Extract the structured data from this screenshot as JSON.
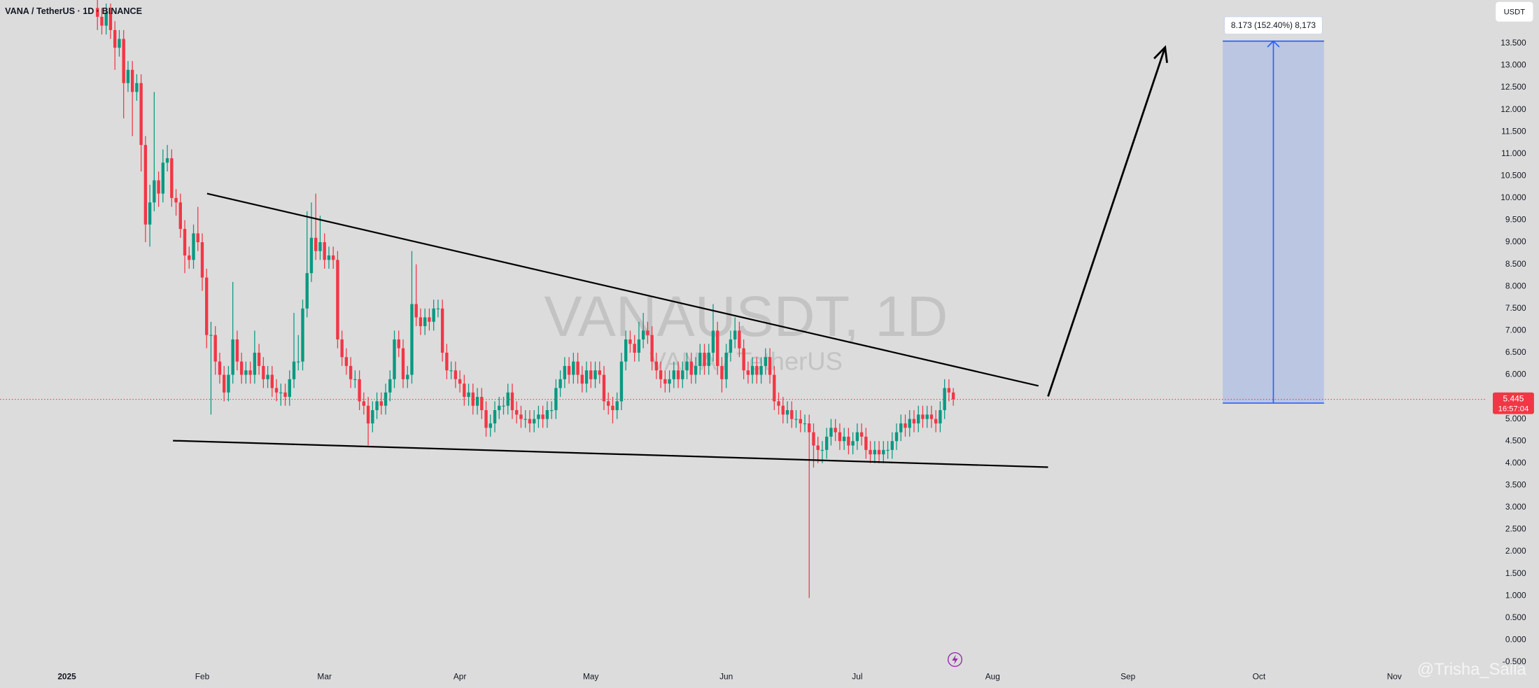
{
  "chart_data": {
    "type": "candlestick",
    "title": "VANA / TetherUS · 1D · BINANCE",
    "watermark": {
      "symbol": "VANAUSDT, 1D",
      "name": "VANA / TetherUS"
    },
    "currency": "USDT",
    "countdown": "16:57:04",
    "up_color": "#089981",
    "down_color": "#f23645",
    "grid": false,
    "xlim": [
      -15.3,
      325.2
    ],
    "xticks": [
      {
        "value": 0,
        "label": "2025"
      },
      {
        "value": 31,
        "label": "Feb"
      },
      {
        "value": 59,
        "label": "Mar"
      },
      {
        "value": 90,
        "label": "Apr"
      },
      {
        "value": 120,
        "label": "May"
      },
      {
        "value": 151,
        "label": "Jun"
      },
      {
        "value": 181,
        "label": "Jul"
      },
      {
        "value": 212,
        "label": "Aug"
      },
      {
        "value": 243,
        "label": "Sep"
      },
      {
        "value": 273,
        "label": "Oct"
      },
      {
        "value": 304,
        "label": "Nov"
      }
    ],
    "ylim": [
      -0.62,
      14.48
    ],
    "yticks": [
      {
        "value": -0.5,
        "label": "-0.500"
      },
      {
        "value": 0,
        "label": "0.000"
      },
      {
        "value": 0.5,
        "label": "0.500"
      },
      {
        "value": 1,
        "label": "1.000"
      },
      {
        "value": 1.5,
        "label": "1.500"
      },
      {
        "value": 2,
        "label": "2.000"
      },
      {
        "value": 2.5,
        "label": "2.500"
      },
      {
        "value": 3,
        "label": "3.000"
      },
      {
        "value": 3.5,
        "label": "3.500"
      },
      {
        "value": 4,
        "label": "4.000"
      },
      {
        "value": 4.5,
        "label": "4.500"
      },
      {
        "value": 5,
        "label": "5.000"
      },
      {
        "value": 5.5,
        "label": "5.500"
      },
      {
        "value": 6,
        "label": "6.000"
      },
      {
        "value": 6.5,
        "label": "6.500"
      },
      {
        "value": 7,
        "label": "7.000"
      },
      {
        "value": 7.5,
        "label": "7.500"
      },
      {
        "value": 8,
        "label": "8.000"
      },
      {
        "value": 8.5,
        "label": "8.500"
      },
      {
        "value": 9,
        "label": "9.000"
      },
      {
        "value": 9.5,
        "label": "9.500"
      },
      {
        "value": 10,
        "label": "10.000"
      },
      {
        "value": 10.5,
        "label": "10.500"
      },
      {
        "value": 11,
        "label": "11.000"
      },
      {
        "value": 11.5,
        "label": "11.500"
      },
      {
        "value": 12,
        "label": "12.000"
      },
      {
        "value": 12.5,
        "label": "12.500"
      },
      {
        "value": 13,
        "label": "13.000"
      },
      {
        "value": 13.5,
        "label": "13.500"
      }
    ],
    "x": [
      7,
      8,
      9,
      10,
      11,
      12,
      13,
      14,
      15,
      16,
      17,
      18,
      19,
      20,
      21,
      22,
      23,
      24,
      25,
      26,
      27,
      28,
      29,
      30,
      31,
      32,
      33,
      34,
      35,
      36,
      37,
      38,
      39,
      40,
      41,
      42,
      43,
      44,
      45,
      46,
      47,
      48,
      49,
      50,
      51,
      52,
      53,
      54,
      55,
      56,
      57,
      58,
      59,
      60,
      61,
      62,
      63,
      64,
      65,
      66,
      67,
      68,
      69,
      70,
      71,
      72,
      73,
      74,
      75,
      76,
      77,
      78,
      79,
      80,
      81,
      82,
      83,
      84,
      85,
      86,
      87,
      88,
      89,
      90,
      91,
      92,
      93,
      94,
      95,
      96,
      97,
      98,
      99,
      100,
      101,
      102,
      103,
      104,
      105,
      106,
      107,
      108,
      109,
      110,
      111,
      112,
      113,
      114,
      115,
      116,
      117,
      118,
      119,
      120,
      121,
      122,
      123,
      124,
      125,
      126,
      127,
      128,
      129,
      130,
      131,
      132,
      133,
      134,
      135,
      136,
      137,
      138,
      139,
      140,
      141,
      142,
      143,
      144,
      145,
      146,
      147,
      148,
      149,
      150,
      151,
      152,
      153,
      154,
      155,
      156,
      157,
      158,
      159,
      160,
      161,
      162,
      163,
      164,
      165,
      166,
      167,
      168,
      169,
      170,
      171,
      172,
      173,
      174,
      175,
      176,
      177,
      178,
      179,
      180,
      181,
      182,
      183,
      184,
      185,
      186,
      187,
      188,
      189,
      190,
      191,
      192,
      193,
      194,
      195,
      196,
      197,
      198,
      199,
      200,
      201,
      202,
      203
    ],
    "candles": [
      [
        14.3,
        14.6,
        13.8,
        14.1
      ],
      [
        14.1,
        14.3,
        13.7,
        13.9
      ],
      [
        13.9,
        14.4,
        13.7,
        14.2
      ],
      [
        14.2,
        14.4,
        13.6,
        13.8
      ],
      [
        13.8,
        14.0,
        12.9,
        13.4
      ],
      [
        13.4,
        13.8,
        13.2,
        13.6
      ],
      [
        13.6,
        13.8,
        11.8,
        12.6
      ],
      [
        12.6,
        13.1,
        12.4,
        12.9
      ],
      [
        12.9,
        13.1,
        11.4,
        12.4
      ],
      [
        12.4,
        12.8,
        12.2,
        12.6
      ],
      [
        12.6,
        12.8,
        10.6,
        11.2
      ],
      [
        11.2,
        11.4,
        9.0,
        9.4
      ],
      [
        9.4,
        10.3,
        8.9,
        9.9
      ],
      [
        9.9,
        12.4,
        9.7,
        10.4
      ],
      [
        10.4,
        10.6,
        9.8,
        10.1
      ],
      [
        10.1,
        11.1,
        9.9,
        10.8
      ],
      [
        10.8,
        11.2,
        10.6,
        10.9
      ],
      [
        10.9,
        11.1,
        9.8,
        10.0
      ],
      [
        10.0,
        10.2,
        9.6,
        9.9
      ],
      [
        9.9,
        10.1,
        9.1,
        9.3
      ],
      [
        9.3,
        9.5,
        8.3,
        8.7
      ],
      [
        8.7,
        8.9,
        8.4,
        8.6
      ],
      [
        8.6,
        9.4,
        8.4,
        9.2
      ],
      [
        9.2,
        9.8,
        8.8,
        9.0
      ],
      [
        9.0,
        9.2,
        7.9,
        8.2
      ],
      [
        8.2,
        8.4,
        6.6,
        6.9
      ],
      [
        6.9,
        7.2,
        5.1,
        6.9
      ],
      [
        6.9,
        7.1,
        6.0,
        6.3
      ],
      [
        6.3,
        6.5,
        5.8,
        6.0
      ],
      [
        6.0,
        6.2,
        5.4,
        5.6
      ],
      [
        5.6,
        6.2,
        5.4,
        6.0
      ],
      [
        6.0,
        8.1,
        5.8,
        6.8
      ],
      [
        6.8,
        7.0,
        6.1,
        6.3
      ],
      [
        6.3,
        6.5,
        5.8,
        6.0
      ],
      [
        6.0,
        6.3,
        5.8,
        6.1
      ],
      [
        6.1,
        6.3,
        5.8,
        6.0
      ],
      [
        6.0,
        7.0,
        5.8,
        6.5
      ],
      [
        6.5,
        6.7,
        6.0,
        6.2
      ],
      [
        6.2,
        6.4,
        5.7,
        5.9
      ],
      [
        5.9,
        6.2,
        5.7,
        6.0
      ],
      [
        6.0,
        6.2,
        5.5,
        5.7
      ],
      [
        5.7,
        5.9,
        5.4,
        5.6
      ],
      [
        5.6,
        5.8,
        5.3,
        5.6
      ],
      [
        5.6,
        5.8,
        5.3,
        5.5
      ],
      [
        5.5,
        6.1,
        5.3,
        5.9
      ],
      [
        5.9,
        7.4,
        5.7,
        6.3
      ],
      [
        6.3,
        6.9,
        6.1,
        6.3
      ],
      [
        6.3,
        7.7,
        6.1,
        7.5
      ],
      [
        7.5,
        9.7,
        7.3,
        8.3
      ],
      [
        8.3,
        9.9,
        8.1,
        9.1
      ],
      [
        9.1,
        10.1,
        8.6,
        8.8
      ],
      [
        8.8,
        9.6,
        8.6,
        9.0
      ],
      [
        9.0,
        9.2,
        8.4,
        8.6
      ],
      [
        8.6,
        8.9,
        8.4,
        8.7
      ],
      [
        8.7,
        8.9,
        8.4,
        8.6
      ],
      [
        8.6,
        8.8,
        6.6,
        6.8
      ],
      [
        6.8,
        7.0,
        6.2,
        6.4
      ],
      [
        6.4,
        6.6,
        6.0,
        6.2
      ],
      [
        6.2,
        6.4,
        5.7,
        5.9
      ],
      [
        5.9,
        6.1,
        5.7,
        5.9
      ],
      [
        5.9,
        6.1,
        5.2,
        5.4
      ],
      [
        5.4,
        5.6,
        5.1,
        5.3
      ],
      [
        5.3,
        5.5,
        4.4,
        4.9
      ],
      [
        4.9,
        5.4,
        4.7,
        5.2
      ],
      [
        5.2,
        5.6,
        5.0,
        5.4
      ],
      [
        5.4,
        5.6,
        5.1,
        5.3
      ],
      [
        5.3,
        5.8,
        5.1,
        5.6
      ],
      [
        5.6,
        6.1,
        5.4,
        5.9
      ],
      [
        5.9,
        7.0,
        5.7,
        6.8
      ],
      [
        6.8,
        7.0,
        6.4,
        6.6
      ],
      [
        6.6,
        6.8,
        5.7,
        5.9
      ],
      [
        5.9,
        6.2,
        5.7,
        6.0
      ],
      [
        6.0,
        8.8,
        5.8,
        7.6
      ],
      [
        7.6,
        8.5,
        7.1,
        7.3
      ],
      [
        7.3,
        7.5,
        6.9,
        7.1
      ],
      [
        7.1,
        7.5,
        6.9,
        7.3
      ],
      [
        7.3,
        7.5,
        7.0,
        7.2
      ],
      [
        7.2,
        7.7,
        7.0,
        7.5
      ],
      [
        7.5,
        7.7,
        7.3,
        7.5
      ],
      [
        7.5,
        7.7,
        6.3,
        6.5
      ],
      [
        6.5,
        6.7,
        5.9,
        6.1
      ],
      [
        6.1,
        6.3,
        5.9,
        6.1
      ],
      [
        6.1,
        6.3,
        5.7,
        5.9
      ],
      [
        5.9,
        6.1,
        5.6,
        5.8
      ],
      [
        5.8,
        6.0,
        5.3,
        5.5
      ],
      [
        5.5,
        5.8,
        5.3,
        5.6
      ],
      [
        5.6,
        5.8,
        5.1,
        5.3
      ],
      [
        5.3,
        5.7,
        5.1,
        5.5
      ],
      [
        5.5,
        5.7,
        5.0,
        5.2
      ],
      [
        5.2,
        5.4,
        4.6,
        4.8
      ],
      [
        4.8,
        5.1,
        4.6,
        4.9
      ],
      [
        4.9,
        5.4,
        4.7,
        5.2
      ],
      [
        5.2,
        5.5,
        5.0,
        5.3
      ],
      [
        5.3,
        5.5,
        5.1,
        5.3
      ],
      [
        5.3,
        5.8,
        5.1,
        5.6
      ],
      [
        5.6,
        5.8,
        5.0,
        5.2
      ],
      [
        5.2,
        5.4,
        4.9,
        5.1
      ],
      [
        5.1,
        5.3,
        4.8,
        5.0
      ],
      [
        5.0,
        5.2,
        4.8,
        5.0
      ],
      [
        5.0,
        5.2,
        4.7,
        4.9
      ],
      [
        4.9,
        5.2,
        4.7,
        5.0
      ],
      [
        5.0,
        5.3,
        4.8,
        5.1
      ],
      [
        5.1,
        5.3,
        4.8,
        5.0
      ],
      [
        5.0,
        5.4,
        4.8,
        5.2
      ],
      [
        5.2,
        5.4,
        5.0,
        5.2
      ],
      [
        5.2,
        5.9,
        5.0,
        5.7
      ],
      [
        5.7,
        6.1,
        5.5,
        5.9
      ],
      [
        5.9,
        6.4,
        5.7,
        6.2
      ],
      [
        6.2,
        6.4,
        5.8,
        6.0
      ],
      [
        6.0,
        6.5,
        5.8,
        6.3
      ],
      [
        6.3,
        6.5,
        5.8,
        6.0
      ],
      [
        6.0,
        6.2,
        5.6,
        5.8
      ],
      [
        5.8,
        6.3,
        5.6,
        6.1
      ],
      [
        6.1,
        6.3,
        5.7,
        5.9
      ],
      [
        5.9,
        6.3,
        5.7,
        6.1
      ],
      [
        6.1,
        6.3,
        5.8,
        6.0
      ],
      [
        6.0,
        6.2,
        5.2,
        5.4
      ],
      [
        5.4,
        5.6,
        5.1,
        5.3
      ],
      [
        5.3,
        5.5,
        4.9,
        5.2
      ],
      [
        5.2,
        5.6,
        5.0,
        5.4
      ],
      [
        5.4,
        6.5,
        5.2,
        6.3
      ],
      [
        6.3,
        7.0,
        6.1,
        6.8
      ],
      [
        6.8,
        7.0,
        6.5,
        6.7
      ],
      [
        6.7,
        6.9,
        6.3,
        6.5
      ],
      [
        6.5,
        7.2,
        6.3,
        6.8
      ],
      [
        6.8,
        7.4,
        6.6,
        7.0
      ],
      [
        7.0,
        7.2,
        6.7,
        6.9
      ],
      [
        6.9,
        7.1,
        6.1,
        6.3
      ],
      [
        6.3,
        6.5,
        5.9,
        6.1
      ],
      [
        6.1,
        6.3,
        5.7,
        5.9
      ],
      [
        5.9,
        6.1,
        5.6,
        5.8
      ],
      [
        5.8,
        6.1,
        5.6,
        5.9
      ],
      [
        5.9,
        6.3,
        5.7,
        6.1
      ],
      [
        6.1,
        6.3,
        5.7,
        5.9
      ],
      [
        5.9,
        6.3,
        5.7,
        6.1
      ],
      [
        6.1,
        6.5,
        5.9,
        6.3
      ],
      [
        6.3,
        6.5,
        5.8,
        6.0
      ],
      [
        6.0,
        6.4,
        5.8,
        6.2
      ],
      [
        6.2,
        6.7,
        6.0,
        6.5
      ],
      [
        6.5,
        6.7,
        6.0,
        6.2
      ],
      [
        6.2,
        6.7,
        6.0,
        6.5
      ],
      [
        6.5,
        7.6,
        6.3,
        7.0
      ],
      [
        7.0,
        7.2,
        6.0,
        6.2
      ],
      [
        6.2,
        6.4,
        5.6,
        5.9
      ],
      [
        5.9,
        6.7,
        5.7,
        6.5
      ],
      [
        6.5,
        7.0,
        6.3,
        6.8
      ],
      [
        6.8,
        7.3,
        6.6,
        7.0
      ],
      [
        7.0,
        7.2,
        6.4,
        6.6
      ],
      [
        6.6,
        6.8,
        5.9,
        6.1
      ],
      [
        6.1,
        6.3,
        5.8,
        6.0
      ],
      [
        6.0,
        6.4,
        5.8,
        6.2
      ],
      [
        6.2,
        6.4,
        5.8,
        6.0
      ],
      [
        6.0,
        6.4,
        5.8,
        6.2
      ],
      [
        6.2,
        6.6,
        6.0,
        6.4
      ],
      [
        6.4,
        6.6,
        5.8,
        6.0
      ],
      [
        6.0,
        6.2,
        5.2,
        5.4
      ],
      [
        5.4,
        5.6,
        5.1,
        5.3
      ],
      [
        5.3,
        5.5,
        4.9,
        5.1
      ],
      [
        5.1,
        5.4,
        4.9,
        5.2
      ],
      [
        5.2,
        5.4,
        4.8,
        5.0
      ],
      [
        5.0,
        5.2,
        4.8,
        5.0
      ],
      [
        5.0,
        5.2,
        4.7,
        4.9
      ],
      [
        4.9,
        5.1,
        4.7,
        4.9
      ],
      [
        4.9,
        5.1,
        0.95,
        4.7
      ],
      [
        4.7,
        4.9,
        3.9,
        4.4
      ],
      [
        4.4,
        4.6,
        4.0,
        4.3
      ],
      [
        4.3,
        4.5,
        4.0,
        4.3
      ],
      [
        4.3,
        4.8,
        4.1,
        4.6
      ],
      [
        4.6,
        5.0,
        4.4,
        4.8
      ],
      [
        4.8,
        5.0,
        4.5,
        4.7
      ],
      [
        4.7,
        4.9,
        4.3,
        4.5
      ],
      [
        4.5,
        4.8,
        4.3,
        4.6
      ],
      [
        4.6,
        4.8,
        4.2,
        4.4
      ],
      [
        4.4,
        4.7,
        4.2,
        4.5
      ],
      [
        4.5,
        4.9,
        4.3,
        4.7
      ],
      [
        4.7,
        4.9,
        4.4,
        4.6
      ],
      [
        4.6,
        4.8,
        4.1,
        4.3
      ],
      [
        4.3,
        4.5,
        4.0,
        4.2
      ],
      [
        4.2,
        4.5,
        4.0,
        4.3
      ],
      [
        4.3,
        4.5,
        4.0,
        4.2
      ],
      [
        4.2,
        4.5,
        4.0,
        4.3
      ],
      [
        4.3,
        4.5,
        4.1,
        4.3
      ],
      [
        4.3,
        4.7,
        4.1,
        4.5
      ],
      [
        4.5,
        4.9,
        4.3,
        4.7
      ],
      [
        4.7,
        5.1,
        4.5,
        4.9
      ],
      [
        4.9,
        5.1,
        4.6,
        4.8
      ],
      [
        4.8,
        5.2,
        4.6,
        5.0
      ],
      [
        5.0,
        5.2,
        4.7,
        4.9
      ],
      [
        4.9,
        5.3,
        4.7,
        5.1
      ],
      [
        5.1,
        5.3,
        4.8,
        5.0
      ],
      [
        5.0,
        5.3,
        4.8,
        5.1
      ],
      [
        5.1,
        5.3,
        4.8,
        5.0
      ],
      [
        5.0,
        5.2,
        4.7,
        4.9
      ],
      [
        4.9,
        5.4,
        4.7,
        5.2
      ],
      [
        5.2,
        5.9,
        5.0,
        5.7
      ],
      [
        5.7,
        5.9,
        5.4,
        5.6
      ],
      [
        5.6,
        5.7,
        5.3,
        5.445
      ]
    ],
    "trendlines": [
      [
        [
          32.1,
          10.1
        ],
        [
          222.5,
          5.75
        ]
      ],
      [
        [
          24.3,
          4.51
        ],
        [
          224.7,
          3.91
        ]
      ]
    ],
    "arrow": [
      [
        224.7,
        5.51
      ],
      [
        251.5,
        13.41
      ]
    ],
    "target": {
      "x": [
        264.7,
        287.9
      ],
      "y": [
        5.36,
        13.55
      ],
      "label": "8.173 (152.40%) 8,173"
    }
  },
  "credit": "@Trisha_Salla"
}
